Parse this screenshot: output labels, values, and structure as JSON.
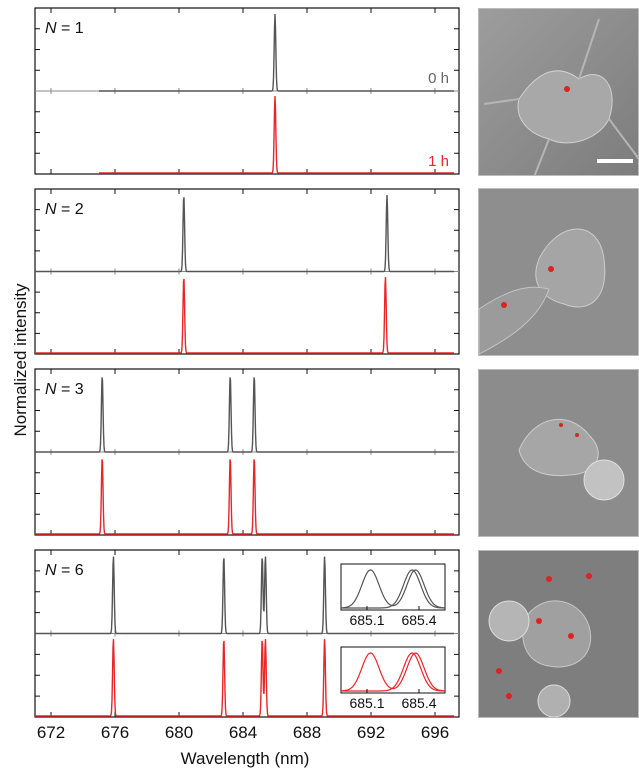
{
  "chart_data": {
    "type": "line",
    "ylabel": "Normalized intensity",
    "xlabel": "Wavelength (nm)",
    "xlim": [
      671,
      697.5
    ],
    "xticks": [
      672,
      676,
      680,
      684,
      688,
      692,
      696
    ],
    "panels": [
      {
        "label_var": "N",
        "label_eq": " = 1",
        "peaks_top": [
          686.0
        ],
        "peaks_bottom": [
          686.0
        ],
        "baseline_start": 675,
        "time_top": "0 h",
        "time_bottom": "1 h"
      },
      {
        "label_var": "N",
        "label_eq": " = 2",
        "peaks_top": [
          680.3,
          693.0
        ],
        "peaks_bottom": [
          680.3,
          692.9
        ],
        "baseline_start": 671
      },
      {
        "label_var": "N",
        "label_eq": " = 3",
        "peaks_top": [
          675.2,
          683.2,
          684.7
        ],
        "peaks_bottom": [
          675.2,
          683.2,
          684.7
        ],
        "baseline_start": 671
      },
      {
        "label_var": "N",
        "label_eq": " = 6",
        "peaks_top": [
          675.9,
          682.8,
          685.2,
          685.4,
          689.1
        ],
        "peaks_bottom": [
          675.9,
          682.8,
          685.2,
          685.4,
          689.1
        ],
        "baseline_start": 671,
        "inset": {
          "xticks": [
            "685.1",
            "685.4"
          ]
        }
      }
    ],
    "series": [
      {
        "color": "#555555"
      },
      {
        "color": "#e8262a"
      }
    ]
  },
  "scale_bar": "scale bar"
}
